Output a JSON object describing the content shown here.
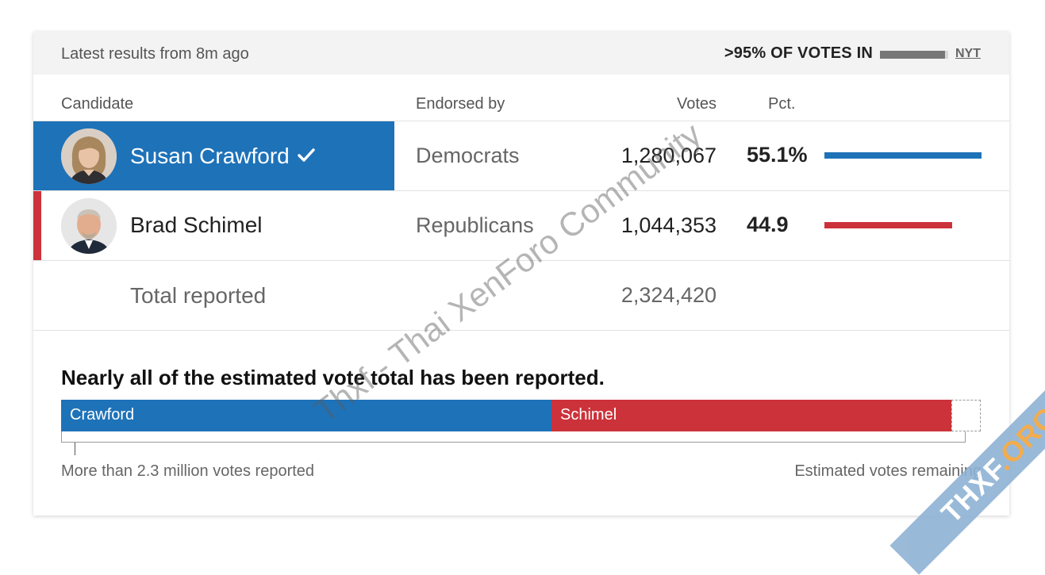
{
  "header": {
    "latest_results": "Latest results from 8m ago",
    "votes_in": ">95% OF VOTES IN",
    "reporting_fraction": 0.95,
    "source": "NYT"
  },
  "columns": {
    "candidate": "Candidate",
    "endorsed_by": "Endorsed by",
    "votes": "Votes",
    "pct": "Pct."
  },
  "candidates": [
    {
      "name": "Susan Crawford",
      "winner": true,
      "endorsed_by": "Democrats",
      "votes": "1,280,067",
      "pct": "55.1%",
      "pct_value": 55.1,
      "color": "#1e72b8"
    },
    {
      "name": "Brad Schimel",
      "winner": false,
      "endorsed_by": "Republicans",
      "votes": "1,044,353",
      "pct": "44.9",
      "pct_value": 44.9,
      "color": "#cc323a"
    }
  ],
  "total": {
    "label": "Total reported",
    "votes": "2,324,420"
  },
  "estimate": {
    "title": "Nearly all of the estimated vote total has been reported.",
    "segments": [
      {
        "label": "Crawford",
        "share": 0.533,
        "color": "#1e72b8"
      },
      {
        "label": "Schimel",
        "share": 0.435,
        "color": "#cc323a"
      }
    ],
    "remaining_share": 0.017,
    "reported_label": "More than 2.3 million votes reported",
    "remaining_label": "Estimated votes remaining"
  },
  "watermark": {
    "text": "Thxf - Thai XenForo Community",
    "ribbon_main": "THXF",
    "ribbon_org": ".ORG"
  }
}
